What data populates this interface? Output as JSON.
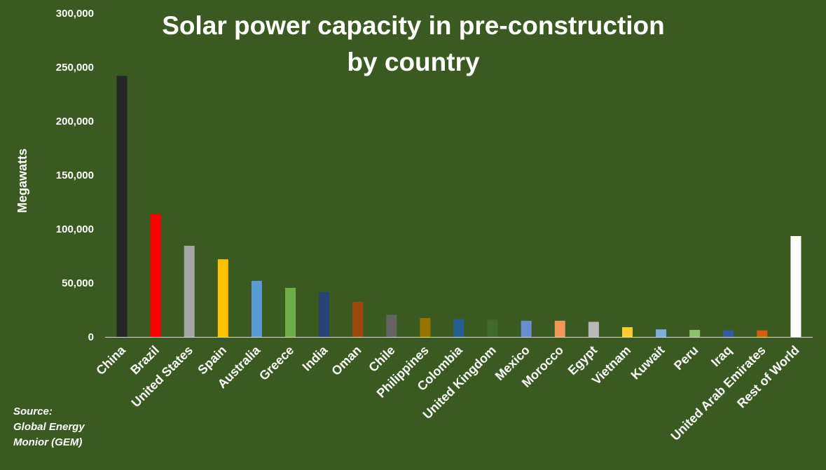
{
  "chart_data": {
    "type": "bar",
    "title_lines": [
      "Solar power capacity in pre-construction",
      "by country"
    ],
    "xlabel": "",
    "ylabel": "Megawatts",
    "ylim": [
      0,
      300000
    ],
    "yticks": [
      0,
      50000,
      100000,
      150000,
      200000,
      250000,
      300000
    ],
    "ytick_labels": [
      "0",
      "50,000",
      "100,000",
      "150,000",
      "200,000",
      "250,000",
      "300,000"
    ],
    "grid": false,
    "categories": [
      "China",
      "Brazil",
      "United States",
      "Spain",
      "Australia",
      "Greece",
      "India",
      "Oman",
      "Chile",
      "Philippines",
      "Colombia",
      "United Kingdom",
      "Mexico",
      "Morocco",
      "Egypt",
      "Vietnam",
      "Kuwait",
      "Peru",
      "Iraq",
      "United Arab Emirates",
      "Rest of World"
    ],
    "values": [
      242000,
      114000,
      84500,
      72000,
      52000,
      45500,
      41500,
      32500,
      20500,
      17500,
      16500,
      16000,
      15000,
      15000,
      14000,
      9000,
      7000,
      6500,
      6000,
      6000,
      93500
    ],
    "colors": [
      "#262626",
      "#ff0000",
      "#a6a6a6",
      "#ffc000",
      "#5b9bd5",
      "#70ad47",
      "#264478",
      "#9e480e",
      "#636363",
      "#997300",
      "#255e91",
      "#43682b",
      "#698ed0",
      "#f1975a",
      "#b7b7b7",
      "#ffcd33",
      "#7cafdd",
      "#8cc168",
      "#335aa1",
      "#d26012",
      "#ffffff"
    ]
  },
  "source": {
    "lines": [
      "Source:",
      "Global Energy",
      "Monior (GEM)"
    ]
  }
}
